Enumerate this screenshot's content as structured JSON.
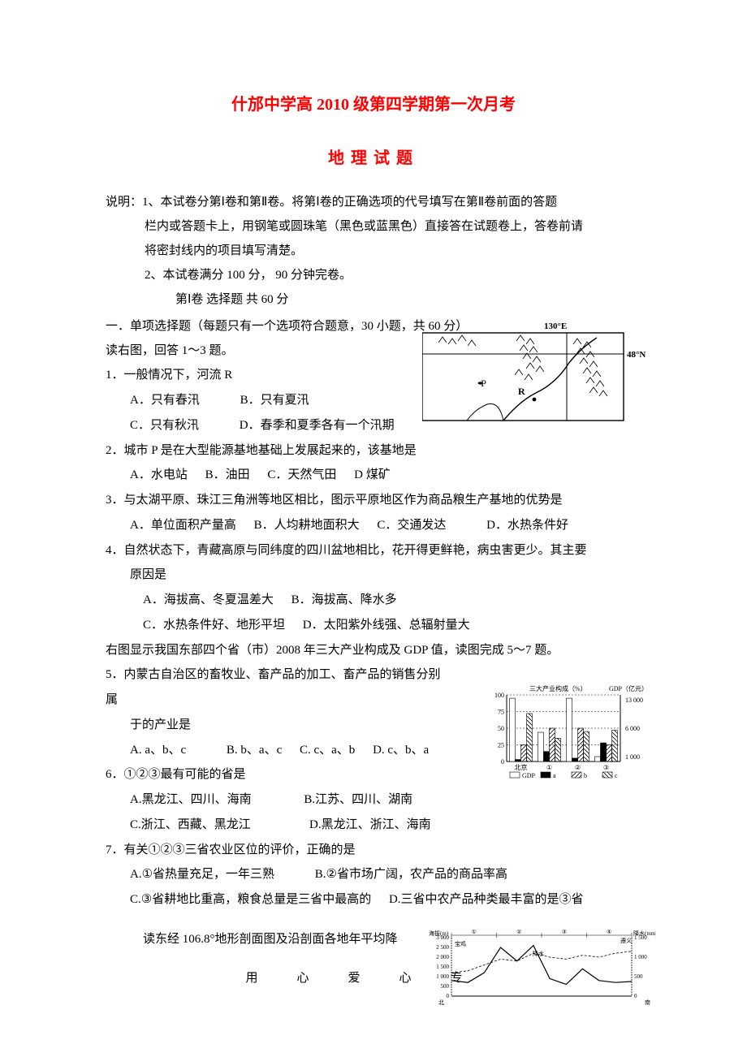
{
  "title_main": "什邡中学高 2010 级第四学期第一次月考",
  "title_sub": "地理试题",
  "instructions": {
    "line1": "说明：1、本试卷分第Ⅰ卷和第Ⅱ卷。将第Ⅰ卷的正确选项的代号填写在第Ⅱ卷前面的答题",
    "line2": "栏内或答题卡上，用钢笔或圆珠笔（黑色或蓝黑色）直接答在试题卷上，答卷前请",
    "line3": "将密封线内的项目填写清楚。",
    "line4": "2、本试卷满分 100 分，  90 分钟完卷。",
    "line5": "第Ⅰ卷    选择题   共 60  分"
  },
  "section1_heading": "一．单项选择题（每题只有一个选项符合题意，30 小题，共 60 分）",
  "intro_1to3": "读右图，回答 1～3 题。",
  "q1": {
    "stem": "1．一般情况下，河流 R",
    "A": "A．只有春汛",
    "B": "B．只有夏汛",
    "C": "C．只有秋汛",
    "D": "D．春季和夏季各有一个汛期"
  },
  "q2": {
    "stem": "2．城市 P 是在大型能源基地基础上发展起来的，该基地是",
    "A": "A．水电站",
    "B": "B．油田",
    "C": "C．天然气田",
    "D": "D   煤矿"
  },
  "q3": {
    "stem": "3．与太湖平原、珠江三角洲等地区相比，图示平原地区作为商品粮生产基地的优势是",
    "A": "A．单位面积产量高",
    "B": "B．人均耕地面积大",
    "C": "C．交通发达",
    "D": "D．水热条件好"
  },
  "q4": {
    "stem1": "4．自然状态下，青藏高原与同纬度的四川盆地相比，花开得更鲜艳，病虫害更少。其主要",
    "stem2": "原因是",
    "A": "A．海拔高、冬夏温差大",
    "B": "B．海拔高、降水多",
    "C": "C．水热条件好、地形平坦",
    "D": "D．太阳紫外线强、总辐射量大"
  },
  "intro_5to7": "右图显示我国东部四个省（市）2008 年三大产业构成及 GDP 值，读图完成 5～7 题。",
  "q5": {
    "stem1": "5．内蒙古自治区的畜牧业、畜产品的加工、畜产品的销售分别",
    "stem1b": "属",
    "stem2": "于的产业是",
    "A": "A. a、b、c",
    "B": "B. b、a、c",
    "C": "C. c、a、b",
    "D": "D. c、b、a"
  },
  "q6": {
    "stem": "6．①②③最有可能的省是",
    "A": "A.黑龙江、四川、海南",
    "B": "B.江苏、四川、湖南",
    "C": "C.浙江、西藏、黑龙江",
    "D": "D.黑龙江、浙江、海南"
  },
  "q7": {
    "stem": "7．有关①②③三省农业区位的评价，正确的是",
    "A": "A.①省热量充足，一年三熟",
    "B": "B.②省市场广阔，农产品的商品率高",
    "C": "C.③省耕地比重高，粮食总量是三省中最高的",
    "D": "D.三省中农产品种类最丰富的是③省"
  },
  "intro_profile": "读东经 106.8°地形剖面图及沿剖面各地年平均降",
  "footer": "用心爱心专",
  "map_figure": {
    "type": "map",
    "labels": {
      "lon": "130°E",
      "lat": "48°N",
      "city_P": "•P",
      "river_R": "R"
    },
    "border_color": "#000000",
    "line_color": "#000000",
    "background": "#ffffff"
  },
  "bar_chart": {
    "type": "grouped-bar-dual-axis",
    "title_left": "三大产业构成（%）",
    "title_right": "GDP（亿元）",
    "categories": [
      "北京",
      "①",
      "②",
      "③"
    ],
    "left_axis": {
      "min": 0,
      "max": 100,
      "ticks": [
        0,
        25,
        50,
        75,
        100
      ]
    },
    "right_axis": {
      "ticks": [
        1000,
        6000,
        13000
      ],
      "labels": [
        "1 000",
        "6 000",
        "13 000"
      ]
    },
    "series": {
      "GDP": {
        "values": [
          13000,
          6000,
          13000,
          1000
        ],
        "pattern": "blank",
        "label": "GDP"
      },
      "a": {
        "values": [
          3,
          15,
          5,
          28
        ],
        "pattern": "solid",
        "color": "#000000",
        "label": "a"
      },
      "b": {
        "values": [
          25,
          50,
          50,
          25
        ],
        "pattern": "hatch-back",
        "label": "b"
      },
      "c": {
        "values": [
          72,
          35,
          45,
          47
        ],
        "pattern": "hatch-fwd",
        "label": "c"
      }
    },
    "grid_style": "dashed",
    "grid_color": "#000000",
    "font_size": 8,
    "bar_group_width": 36
  },
  "profile_chart": {
    "type": "profile-line",
    "left_axis_label": "海拔(m)",
    "right_axis_label": "降水(mm)",
    "left_ticks": [
      0,
      500,
      1000,
      1500,
      2000,
      2500,
      3000
    ],
    "left_labels": [
      "0",
      "500",
      "1 000",
      "1 500",
      "2 000",
      "2 500",
      "3 000"
    ],
    "right_ticks": [
      0,
      500,
      1000,
      1500
    ],
    "right_labels": [
      "0",
      "500",
      "1 000",
      "1 500"
    ],
    "top_segments": [
      "①",
      "②",
      "③",
      "④"
    ],
    "start_label": "宝鸡",
    "end_label": "遵义",
    "north_label": "北",
    "south_label": "南",
    "inner_label": "降水",
    "elevation_profile": [
      800,
      700,
      1200,
      2500,
      1800,
      2600,
      900,
      600,
      1400,
      800,
      700,
      750
    ],
    "precip_profile": [
      600,
      650,
      800,
      950,
      900,
      1100,
      1000,
      950,
      1050,
      1000,
      1100,
      1150
    ],
    "line_color": "#000000",
    "font_size": 7
  }
}
